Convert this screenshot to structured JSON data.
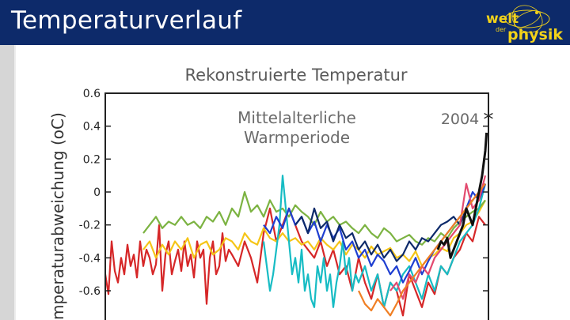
{
  "header": {
    "title": "Temperaturverlauf",
    "logo_text_1": "welt",
    "logo_text_2": "der",
    "logo_text_3": "physik"
  },
  "colors": {
    "header_bg": "#0d2a6a",
    "logo_yellow": "#f2d21a"
  },
  "chart_data": {
    "type": "line",
    "title": "Rekonstruierte Temperatur",
    "ylabel": "Temperaturabweichung (°C)",
    "ylabel_visible": "mperaturabweichung (",
    "ylabel_unit": "oC)",
    "xlabel": "",
    "yticks": [
      "0.6",
      "0.4",
      "0.2",
      "0",
      "-0.2",
      "-0.4",
      "-0.6"
    ],
    "ylim": [
      -0.77,
      0.6
    ],
    "xlim": [
      800,
      2010
    ],
    "annotations": [
      {
        "text_lines": [
          "Mittelalterliche",
          "Warmperiode"
        ],
        "x": 1080,
        "y": 0.4
      },
      {
        "text": "2004",
        "marker": "*",
        "x": 2004,
        "y": 0.45
      }
    ],
    "series": [
      {
        "color": "#d62728",
        "x": [
          800,
          810,
          820,
          830,
          840,
          850,
          860,
          870,
          880,
          890,
          900,
          910,
          920,
          930,
          940,
          950,
          960,
          970,
          980,
          990,
          1000,
          1010,
          1020,
          1030,
          1040,
          1050,
          1060,
          1070,
          1080,
          1090,
          1100,
          1110,
          1120,
          1130,
          1140,
          1150,
          1160,
          1170,
          1180,
          1190,
          1200,
          1220,
          1240,
          1260,
          1280,
          1300,
          1320,
          1340,
          1360,
          1380,
          1400,
          1420,
          1440,
          1460,
          1480,
          1500,
          1520,
          1540,
          1560,
          1580,
          1600,
          1620,
          1640,
          1660,
          1680,
          1700,
          1720,
          1740,
          1760,
          1780,
          1800,
          1820,
          1840,
          1860,
          1880,
          1900,
          1920,
          1940,
          1960,
          1980,
          2000
        ],
        "y": [
          -0.5,
          -0.62,
          -0.3,
          -0.48,
          -0.55,
          -0.4,
          -0.5,
          -0.32,
          -0.45,
          -0.38,
          -0.52,
          -0.3,
          -0.45,
          -0.35,
          -0.4,
          -0.5,
          -0.44,
          -0.2,
          -0.6,
          -0.38,
          -0.3,
          -0.5,
          -0.42,
          -0.35,
          -0.48,
          -0.3,
          -0.45,
          -0.38,
          -0.52,
          -0.3,
          -0.4,
          -0.35,
          -0.68,
          -0.4,
          -0.3,
          -0.5,
          -0.45,
          -0.25,
          -0.42,
          -0.35,
          -0.38,
          -0.45,
          -0.3,
          -0.4,
          -0.55,
          -0.25,
          -0.1,
          -0.3,
          -0.2,
          -0.1,
          -0.2,
          -0.3,
          -0.35,
          -0.4,
          -0.3,
          -0.45,
          -0.35,
          -0.5,
          -0.45,
          -0.6,
          -0.4,
          -0.55,
          -0.65,
          -0.5,
          -0.7,
          -0.55,
          -0.6,
          -0.75,
          -0.5,
          -0.6,
          -0.7,
          -0.55,
          -0.62,
          -0.45,
          -0.5,
          -0.4,
          -0.35,
          -0.25,
          -0.3,
          -0.15,
          -0.2
        ]
      },
      {
        "color": "#f5c518",
        "x": [
          920,
          940,
          960,
          980,
          1000,
          1020,
          1040,
          1060,
          1080,
          1100,
          1120,
          1140,
          1160,
          1180,
          1200,
          1220,
          1240,
          1260,
          1280,
          1300,
          1320,
          1340,
          1360,
          1380,
          1400,
          1420,
          1440,
          1460,
          1480,
          1500,
          1520,
          1540,
          1560,
          1580,
          1600,
          1620,
          1640,
          1660,
          1680,
          1700,
          1720,
          1740,
          1760,
          1780,
          1800,
          1820,
          1840,
          1860,
          1880,
          1900,
          1920,
          1940,
          1960,
          1980,
          2000
        ],
        "y": [
          -0.35,
          -0.3,
          -0.4,
          -0.32,
          -0.38,
          -0.3,
          -0.35,
          -0.28,
          -0.4,
          -0.32,
          -0.3,
          -0.38,
          -0.35,
          -0.28,
          -0.3,
          -0.35,
          -0.25,
          -0.3,
          -0.32,
          -0.22,
          -0.28,
          -0.3,
          -0.25,
          -0.3,
          -0.28,
          -0.32,
          -0.3,
          -0.35,
          -0.28,
          -0.32,
          -0.35,
          -0.3,
          -0.38,
          -0.32,
          -0.35,
          -0.4,
          -0.33,
          -0.38,
          -0.36,
          -0.34,
          -0.4,
          -0.38,
          -0.42,
          -0.36,
          -0.45,
          -0.4,
          -0.38,
          -0.34,
          -0.36,
          -0.28,
          -0.25,
          -0.2,
          -0.18,
          -0.12,
          -0.05
        ]
      },
      {
        "color": "#7cb342",
        "x": [
          920,
          940,
          960,
          980,
          1000,
          1020,
          1040,
          1060,
          1080,
          1100,
          1120,
          1140,
          1160,
          1180,
          1200,
          1220,
          1240,
          1260,
          1280,
          1300,
          1320,
          1340,
          1360,
          1380,
          1400,
          1420,
          1440,
          1460,
          1480,
          1500,
          1520,
          1540,
          1560,
          1580,
          1600,
          1620,
          1640,
          1660,
          1680,
          1700,
          1720,
          1740,
          1760,
          1780,
          1800,
          1820,
          1840,
          1860,
          1880,
          1900,
          1920,
          1940,
          1960,
          1980,
          2000
        ],
        "y": [
          -0.25,
          -0.2,
          -0.15,
          -0.22,
          -0.18,
          -0.2,
          -0.15,
          -0.2,
          -0.18,
          -0.22,
          -0.15,
          -0.18,
          -0.12,
          -0.2,
          -0.1,
          -0.15,
          0,
          -0.12,
          -0.08,
          -0.15,
          -0.05,
          -0.12,
          -0.1,
          -0.15,
          -0.08,
          -0.12,
          -0.15,
          -0.2,
          -0.12,
          -0.18,
          -0.15,
          -0.2,
          -0.18,
          -0.22,
          -0.25,
          -0.2,
          -0.25,
          -0.28,
          -0.22,
          -0.25,
          -0.3,
          -0.28,
          -0.26,
          -0.3,
          -0.32,
          -0.28,
          -0.3,
          -0.25,
          -0.28,
          -0.22,
          -0.18,
          -0.15,
          -0.12,
          -0.1,
          -0.05
        ]
      },
      {
        "color": "#17bcc4",
        "x": [
          1300,
          1310,
          1320,
          1330,
          1340,
          1350,
          1360,
          1370,
          1380,
          1390,
          1400,
          1410,
          1420,
          1430,
          1440,
          1450,
          1460,
          1470,
          1480,
          1490,
          1500,
          1510,
          1520,
          1530,
          1540,
          1550,
          1560,
          1570,
          1580,
          1590,
          1600,
          1620,
          1640,
          1660,
          1680,
          1700,
          1720,
          1740,
          1760,
          1780,
          1800,
          1820,
          1840,
          1860,
          1880,
          1900,
          1920,
          1940,
          1960,
          1980,
          2000
        ],
        "y": [
          -0.3,
          -0.45,
          -0.6,
          -0.5,
          -0.35,
          -0.2,
          0.1,
          -0.1,
          -0.3,
          -0.5,
          -0.4,
          -0.55,
          -0.35,
          -0.6,
          -0.5,
          -0.65,
          -0.7,
          -0.45,
          -0.55,
          -0.4,
          -0.6,
          -0.5,
          -0.7,
          -0.55,
          -0.45,
          -0.3,
          -0.5,
          -0.4,
          -0.6,
          -0.5,
          -0.55,
          -0.45,
          -0.6,
          -0.5,
          -0.7,
          -0.55,
          -0.6,
          -0.5,
          -0.45,
          -0.55,
          -0.65,
          -0.5,
          -0.6,
          -0.45,
          -0.5,
          -0.4,
          -0.3,
          -0.25,
          -0.2,
          -0.1,
          0.05
        ]
      },
      {
        "color": "#1f3fd1",
        "x": [
          1300,
          1320,
          1340,
          1360,
          1380,
          1400,
          1420,
          1440,
          1460,
          1480,
          1500,
          1520,
          1540,
          1560,
          1580,
          1600,
          1620,
          1640,
          1660,
          1680,
          1700,
          1720,
          1740,
          1760,
          1780,
          1800,
          1820,
          1840,
          1860,
          1880,
          1900,
          1920,
          1940,
          1960,
          1980,
          2000
        ],
        "y": [
          -0.2,
          -0.25,
          -0.15,
          -0.22,
          -0.1,
          -0.2,
          -0.15,
          -0.25,
          -0.18,
          -0.3,
          -0.2,
          -0.28,
          -0.22,
          -0.35,
          -0.3,
          -0.4,
          -0.35,
          -0.45,
          -0.38,
          -0.42,
          -0.5,
          -0.45,
          -0.55,
          -0.48,
          -0.4,
          -0.5,
          -0.42,
          -0.35,
          -0.3,
          -0.25,
          -0.2,
          -0.15,
          -0.1,
          0,
          -0.05,
          0.05
        ]
      },
      {
        "color": "#0d2a6a",
        "x": [
          1400,
          1420,
          1440,
          1460,
          1480,
          1500,
          1520,
          1540,
          1560,
          1580,
          1600,
          1620,
          1640,
          1660,
          1680,
          1700,
          1720,
          1740,
          1760,
          1780,
          1800,
          1820,
          1840,
          1860,
          1880,
          1900,
          1920,
          1940,
          1960,
          1980,
          2000
        ],
        "y": [
          -0.2,
          -0.15,
          -0.25,
          -0.1,
          -0.22,
          -0.18,
          -0.3,
          -0.2,
          -0.28,
          -0.25,
          -0.35,
          -0.3,
          -0.38,
          -0.32,
          -0.4,
          -0.35,
          -0.42,
          -0.38,
          -0.3,
          -0.35,
          -0.28,
          -0.3,
          -0.25,
          -0.2,
          -0.18,
          -0.15,
          -0.2,
          -0.1,
          -0.05,
          0,
          0.05
        ]
      },
      {
        "color": "#e34a6f",
        "x": [
          1700,
          1720,
          1740,
          1760,
          1780,
          1800,
          1820,
          1840,
          1860,
          1880,
          1900,
          1920,
          1940,
          1960,
          1980,
          2000
        ],
        "y": [
          -0.6,
          -0.55,
          -0.65,
          -0.5,
          -0.55,
          -0.45,
          -0.5,
          -0.4,
          -0.35,
          -0.3,
          -0.25,
          -0.2,
          0.05,
          -0.1,
          -0.05,
          0.1
        ]
      },
      {
        "color": "#f07f24",
        "x": [
          1600,
          1620,
          1640,
          1660,
          1680,
          1700,
          1720,
          1740,
          1760,
          1780,
          1800,
          1820,
          1840,
          1860,
          1880,
          1900,
          1920,
          1940,
          1960,
          1980,
          2000
        ],
        "y": [
          -0.6,
          -0.68,
          -0.72,
          -0.65,
          -0.7,
          -0.75,
          -0.68,
          -0.6,
          -0.55,
          -0.5,
          -0.45,
          -0.4,
          -0.35,
          -0.3,
          -0.25,
          -0.2,
          -0.15,
          -0.1,
          -0.05,
          0,
          0.05
        ]
      },
      {
        "color": "#111111",
        "x": [
          1850,
          1860,
          1870,
          1880,
          1890,
          1900,
          1910,
          1920,
          1930,
          1940,
          1950,
          1960,
          1970,
          1980,
          1990,
          2000,
          2004
        ],
        "y": [
          -0.35,
          -0.3,
          -0.32,
          -0.28,
          -0.4,
          -0.35,
          -0.3,
          -0.25,
          -0.2,
          -0.1,
          -0.15,
          -0.2,
          -0.1,
          0,
          0.1,
          0.25,
          0.36
        ]
      }
    ]
  }
}
